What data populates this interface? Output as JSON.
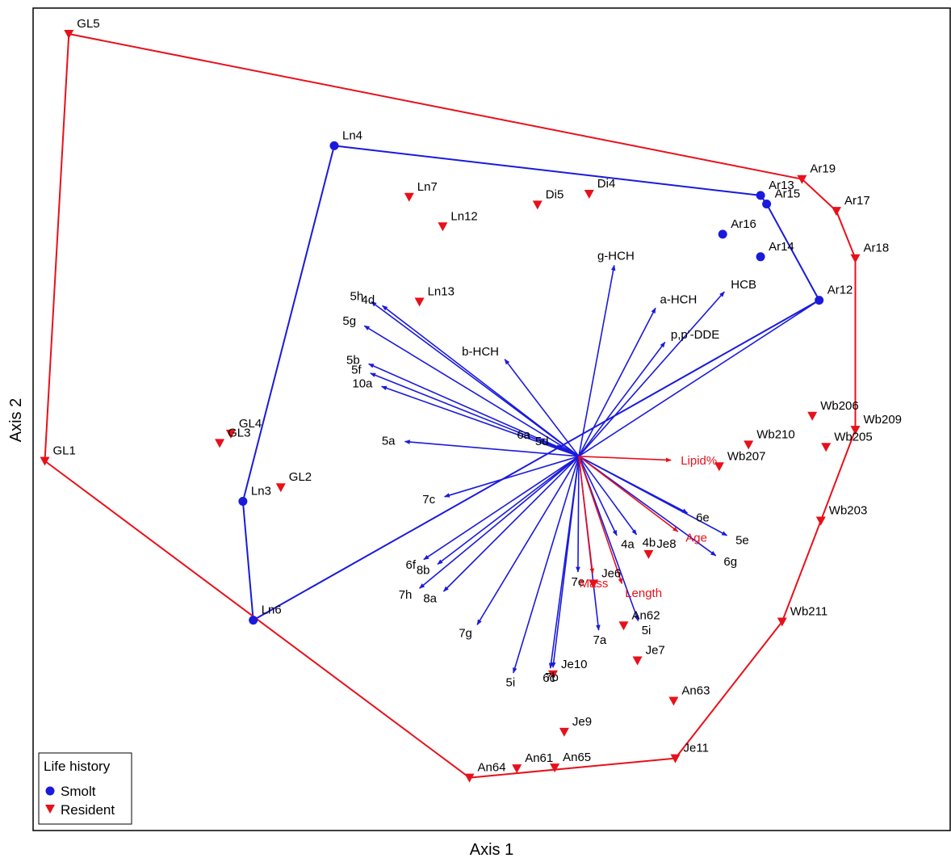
{
  "chart_data": {
    "type": "scatter",
    "title": "",
    "xlabel": "Axis 1",
    "ylabel": "Axis 2",
    "xlim": [
      0,
      1000
    ],
    "ylim": [
      0,
      1000
    ],
    "grid": false,
    "legend": {
      "title": "Life history",
      "placement": "bottom-left",
      "entries": [
        {
          "name": "Smolt",
          "marker": "circle",
          "color": "#1a1adc"
        },
        {
          "name": "Resident",
          "marker": "triangle-down",
          "color": "#e8101a"
        }
      ]
    },
    "colors": {
      "smolt": "#1a1adc",
      "resident": "#e8101a",
      "vector_blue": "#1a1adc",
      "vector_red": "#e8101a"
    },
    "series": [
      {
        "name": "Smolt",
        "marker": "circle",
        "color": "#1a1adc",
        "points": [
          {
            "label": "Ln4",
            "x": 343,
            "y": 856
          },
          {
            "label": "Ln3",
            "x": 237,
            "y": 398
          },
          {
            "label": "Ln6",
            "x": 249,
            "y": 245
          },
          {
            "label": "Ar13",
            "x": 838,
            "y": 792
          },
          {
            "label": "Ar15",
            "x": 845,
            "y": 781
          },
          {
            "label": "Ar16",
            "x": 794,
            "y": 742
          },
          {
            "label": "Ar14",
            "x": 838,
            "y": 713
          },
          {
            "label": "Ar12",
            "x": 906,
            "y": 657
          }
        ],
        "hull": [
          "Ln4",
          "Ar13",
          "Ar15",
          "Ar12",
          "Ln6",
          "Ln3"
        ]
      },
      {
        "name": "Resident",
        "marker": "triangle-down",
        "color": "#e8101a",
        "points": [
          {
            "label": "GL5",
            "x": 35,
            "y": 1000
          },
          {
            "label": "GL1",
            "x": 7,
            "y": 450
          },
          {
            "label": "GL4",
            "x": 223,
            "y": 485
          },
          {
            "label": "GL3",
            "x": 210,
            "y": 473
          },
          {
            "label": "GL2",
            "x": 281,
            "y": 416
          },
          {
            "label": "Ln7",
            "x": 430,
            "y": 790
          },
          {
            "label": "Ln12",
            "x": 469,
            "y": 752
          },
          {
            "label": "Ln13",
            "x": 442,
            "y": 655
          },
          {
            "label": "Di5",
            "x": 579,
            "y": 780
          },
          {
            "label": "Di4",
            "x": 639,
            "y": 794
          },
          {
            "label": "Ar19",
            "x": 886,
            "y": 813
          },
          {
            "label": "Ar17",
            "x": 926,
            "y": 772
          },
          {
            "label": "Ar18",
            "x": 948,
            "y": 711
          },
          {
            "label": "Wb209",
            "x": 948,
            "y": 490
          },
          {
            "label": "Wb206",
            "x": 898,
            "y": 508
          },
          {
            "label": "Wb210",
            "x": 824,
            "y": 471
          },
          {
            "label": "Wb205",
            "x": 914,
            "y": 468
          },
          {
            "label": "Wb207",
            "x": 790,
            "y": 443
          },
          {
            "label": "Wb203",
            "x": 908,
            "y": 373
          },
          {
            "label": "Wb211",
            "x": 863,
            "y": 243
          },
          {
            "label": "Je8",
            "x": 708,
            "y": 330
          },
          {
            "label": "Je6",
            "x": 644,
            "y": 292
          },
          {
            "label": "An62",
            "x": 679,
            "y": 238
          },
          {
            "label": "Je7",
            "x": 695,
            "y": 193
          },
          {
            "label": "Je10",
            "x": 597,
            "y": 175
          },
          {
            "label": "An63",
            "x": 737,
            "y": 141
          },
          {
            "label": "Je9",
            "x": 610,
            "y": 101
          },
          {
            "label": "Je11",
            "x": 739,
            "y": 67
          },
          {
            "label": "An61",
            "x": 555,
            "y": 54
          },
          {
            "label": "An65",
            "x": 599,
            "y": 55
          },
          {
            "label": "An64",
            "x": 500,
            "y": 42
          }
        ],
        "hull": [
          "GL5",
          "Ar19",
          "Ar17",
          "Ar18",
          "Wb209",
          "Wb203",
          "Wb211",
          "Je11",
          "An64",
          "GL1"
        ]
      }
    ],
    "vectors": {
      "origin": {
        "x": 627,
        "y": 456
      },
      "items": [
        {
          "label": "g-HCH",
          "color": "blue",
          "x": 668,
          "y": 702
        },
        {
          "label": "a-HCH",
          "color": "blue",
          "x": 716,
          "y": 647
        },
        {
          "label": "HCB",
          "color": "blue",
          "x": 796,
          "y": 668
        },
        {
          "label": "p,p'-DDE",
          "color": "blue",
          "x": 727,
          "y": 603
        },
        {
          "label": "Ar12",
          "color": "blue",
          "x": 906,
          "y": 657
        },
        {
          "label": "5h",
          "color": "blue",
          "x": 386,
          "y": 655
        },
        {
          "label": "4d",
          "color": "blue",
          "x": 399,
          "y": 650
        },
        {
          "label": "5g",
          "color": "blue",
          "x": 378,
          "y": 624
        },
        {
          "label": "5b",
          "color": "blue",
          "x": 383,
          "y": 575
        },
        {
          "label": "5f",
          "color": "blue",
          "x": 385,
          "y": 563
        },
        {
          "label": "10a",
          "color": "blue",
          "x": 398,
          "y": 546
        },
        {
          "label": "b-HCH",
          "color": "blue",
          "x": 541,
          "y": 581
        },
        {
          "label": "5d",
          "color": "blue",
          "x": 602,
          "y": 470
        },
        {
          "label": "6a",
          "color": "blue",
          "x": 581,
          "y": 479
        },
        {
          "label": "5a",
          "color": "blue",
          "x": 425,
          "y": 475
        },
        {
          "label": "7c",
          "color": "blue",
          "x": 471,
          "y": 404
        },
        {
          "label": "6f",
          "color": "blue",
          "x": 447,
          "y": 323
        },
        {
          "label": "8b",
          "color": "blue",
          "x": 463,
          "y": 317
        },
        {
          "label": "7h",
          "color": "blue",
          "x": 442,
          "y": 286
        },
        {
          "label": "8a",
          "color": "blue",
          "x": 470,
          "y": 282
        },
        {
          "label": "7g",
          "color": "blue",
          "x": 509,
          "y": 239
        },
        {
          "label": "5i",
          "color": "blue",
          "x": 551,
          "y": 177
        },
        {
          "label": "7b",
          "color": "blue",
          "x": 597,
          "y": 184
        },
        {
          "label": "6c",
          "color": "blue",
          "x": 594,
          "y": 183
        },
        {
          "label": "7e",
          "color": "blue",
          "x": 626,
          "y": 307
        },
        {
          "label": "7a",
          "color": "blue",
          "x": 650,
          "y": 232
        },
        {
          "label": "5i",
          "color": "blue",
          "x": 696,
          "y": 244
        },
        {
          "label": "4a",
          "color": "blue",
          "x": 671,
          "y": 354
        },
        {
          "label": "4b",
          "color": "blue",
          "x": 694,
          "y": 355
        },
        {
          "label": "6g",
          "color": "blue",
          "x": 786,
          "y": 328
        },
        {
          "label": "6e",
          "color": "blue",
          "x": 753,
          "y": 383
        },
        {
          "label": "5e",
          "color": "blue",
          "x": 799,
          "y": 354
        },
        {
          "label": "Lipid%",
          "color": "red",
          "x": 734,
          "y": 451
        },
        {
          "label": "Age",
          "color": "red",
          "x": 742,
          "y": 359
        },
        {
          "label": "Length",
          "color": "red",
          "x": 677,
          "y": 292
        },
        {
          "label": "Mass",
          "color": "red",
          "x": 643,
          "y": 305
        }
      ]
    }
  }
}
